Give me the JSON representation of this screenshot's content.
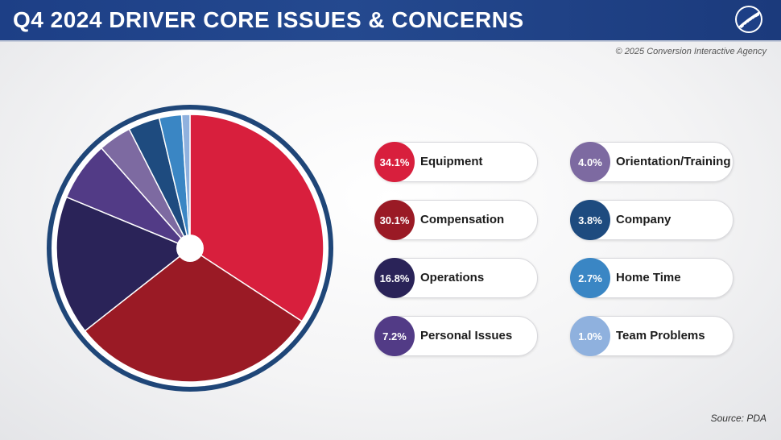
{
  "header": {
    "title": "Q4 2024 DRIVER CORE ISSUES & CONCERNS",
    "logo_icon": "road-logo-icon"
  },
  "copyright": "© 2025 Conversion Interactive Agency",
  "source": "Source: PDA",
  "chart_data": {
    "type": "pie",
    "title": "Q4 2024 DRIVER CORE ISSUES & CONCERNS",
    "categories": [
      "Equipment",
      "Compensation",
      "Operations",
      "Personal Issues",
      "Orientation/Training",
      "Company",
      "Home Time",
      "Team Problems"
    ],
    "values": [
      34.1,
      30.1,
      16.8,
      7.2,
      4.0,
      3.8,
      2.7,
      1.0
    ],
    "labels": [
      "34.1%",
      "30.1%",
      "16.8%",
      "7.2%",
      "4.0%",
      "3.8%",
      "2.7%",
      "1.0%"
    ],
    "colors": [
      "#d81f3d",
      "#9a1a25",
      "#2a2358",
      "#523b86",
      "#7d6aa1",
      "#1e4b7f",
      "#3a86c4",
      "#8fb1de"
    ],
    "legend": "right"
  }
}
